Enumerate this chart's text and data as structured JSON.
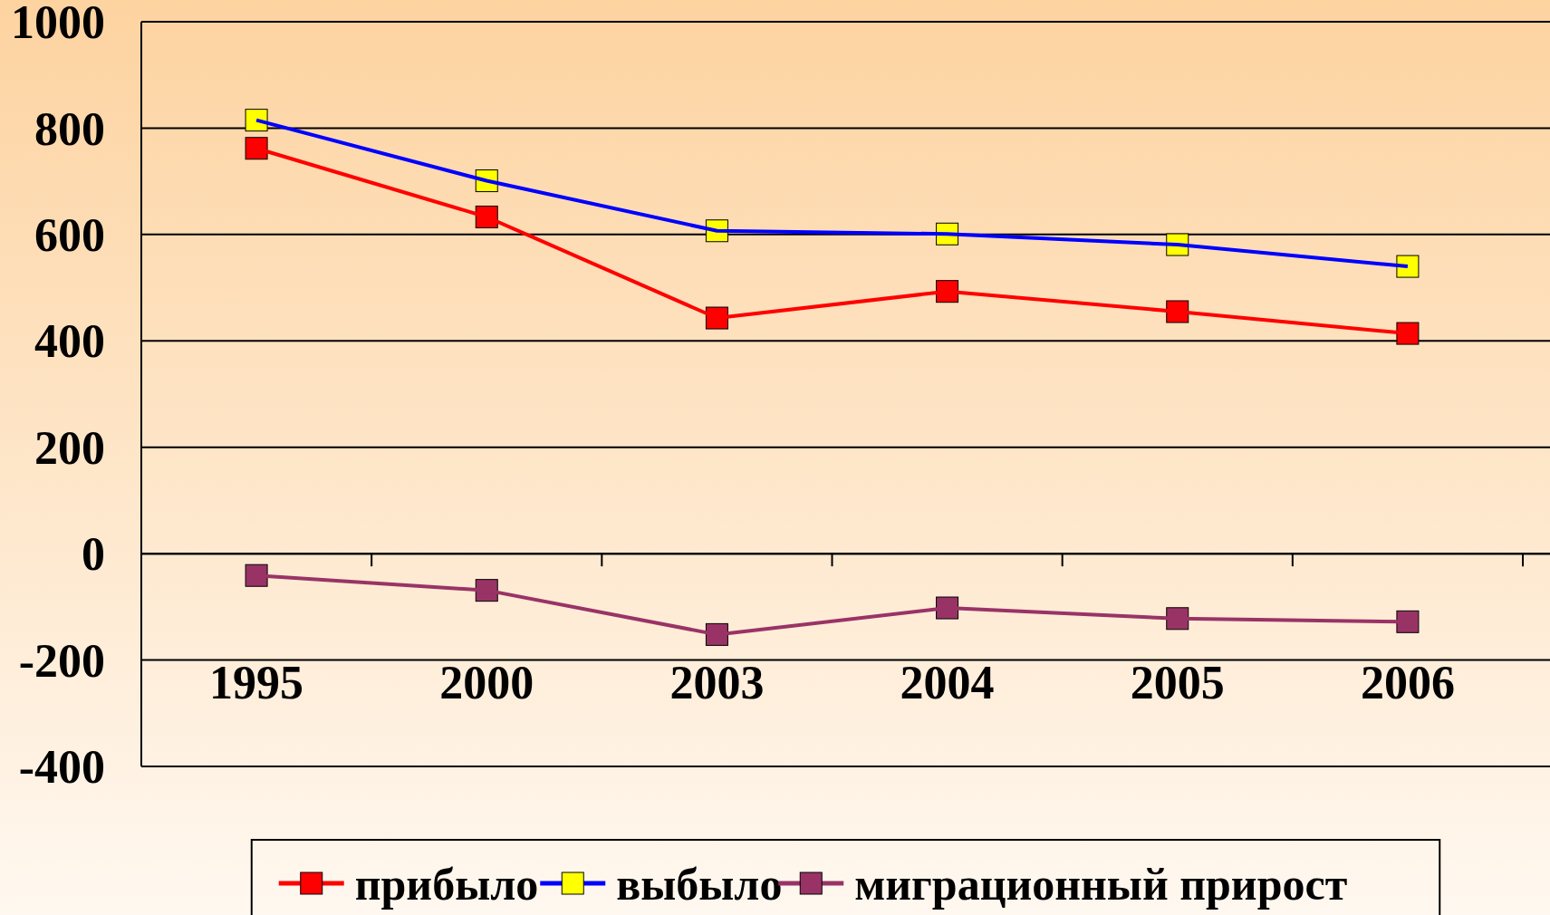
{
  "chart_data": {
    "type": "line",
    "categories": [
      "1995",
      "2000",
      "2003",
      "2004",
      "2005",
      "2006"
    ],
    "series": [
      {
        "name": "прибыло",
        "color": "#ff0000",
        "colors": [
          "#ff0000",
          "#ff0000",
          "#ff0000",
          "#ff0000",
          "#ff0000",
          "#ff0000"
        ],
        "values": [
          762,
          633,
          443,
          493,
          455,
          414
        ]
      },
      {
        "name": "выбыло",
        "color": "#0000ff",
        "colors": [
          "#ffff00",
          "#ffff00",
          "#ffff00",
          "#ffff00",
          "#ffff00",
          "#ffff00"
        ],
        "values": [
          815,
          701,
          607,
          601,
          581,
          540
        ]
      },
      {
        "name": "миграционный прирост",
        "color": "#993366",
        "colors": [
          "#993366",
          "#993366",
          "#993366",
          "#993366",
          "#993366",
          "#993366"
        ],
        "values": [
          -41,
          -69,
          -152,
          -102,
          -122,
          -128
        ]
      }
    ],
    "ylim": [
      -400,
      1000
    ],
    "yticks": [
      -400,
      -200,
      0,
      200,
      400,
      600,
      800,
      1000
    ],
    "grid": "y",
    "legend": "bottom",
    "marker": "square",
    "line_style": "solid"
  }
}
